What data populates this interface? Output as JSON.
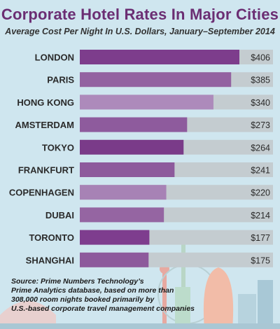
{
  "header": {
    "title": "Corporate Hotel Rates In Major Cities",
    "subtitle": "Average Cost Per Night In U.S. Dollars, January–September 2014"
  },
  "chart_data": {
    "type": "bar",
    "orientation": "horizontal",
    "title": "Corporate Hotel Rates In Major Cities",
    "subtitle": "Average Cost Per Night In U.S. Dollars, January–September 2014",
    "categories": [
      "LONDON",
      "PARIS",
      "HONG KONG",
      "AMSTERDAM",
      "TOKYO",
      "FRANKFURT",
      "COPENHAGEN",
      "DUBAI",
      "TORONTO",
      "SHANGHAI"
    ],
    "values": [
      406,
      385,
      340,
      273,
      264,
      241,
      220,
      214,
      177,
      175
    ],
    "value_labels": [
      "$406",
      "$385",
      "$340",
      "$273",
      "$264",
      "$241",
      "$220",
      "$214",
      "$177",
      "$175"
    ],
    "xlim": [
      0,
      420
    ],
    "bar_colors": [
      "#7d3d8c",
      "#9362a1",
      "#ad8abb",
      "#8e5b9d",
      "#7a3b89",
      "#8d5a9c",
      "#a782b5",
      "#9565a2",
      "#7e3d8e",
      "#8d5a9c"
    ],
    "track_color": "#c4ccd0"
  },
  "source_lines": [
    "Source: Prime Numbers Technology’s",
    "Prime Analytics database, based on more than",
    "308,000 room nights booked primarily by",
    "U.S.-based corporate travel management companies"
  ]
}
